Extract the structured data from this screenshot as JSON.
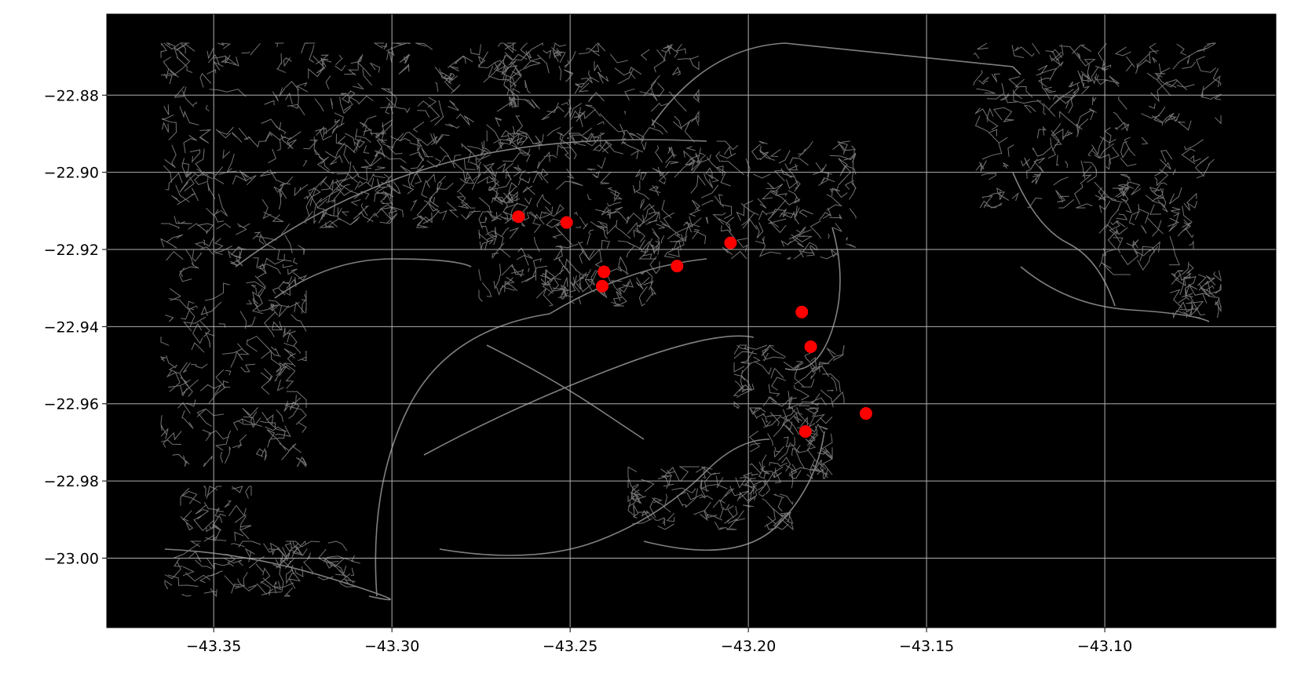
{
  "chart_data": {
    "type": "scatter",
    "title": "",
    "xlabel": "",
    "ylabel": "",
    "xlim": [
      -43.38,
      -43.052
    ],
    "ylim": [
      -23.018,
      -22.859
    ],
    "x_ticks": [
      -43.35,
      -43.3,
      -43.25,
      -43.2,
      -43.15,
      -43.1
    ],
    "x_tick_labels": [
      "−43.35",
      "−43.30",
      "−43.25",
      "−43.20",
      "−43.15",
      "−43.10"
    ],
    "y_ticks": [
      -22.88,
      -22.9,
      -22.92,
      -22.94,
      -22.96,
      -22.98,
      -23.0
    ],
    "y_tick_labels": [
      "−22.88",
      "−22.90",
      "−22.92",
      "−22.94",
      "−22.96",
      "−22.98",
      "−23.00"
    ],
    "grid": true,
    "background_color": "#000000",
    "road_color": "#808080",
    "grid_color": "#b0b0b0",
    "point_color": "#ff0000",
    "series": [
      {
        "values": [
          {
            "x": -43.2645,
            "y": -22.9115
          },
          {
            "x": -43.251,
            "y": -22.913
          },
          {
            "x": -43.2405,
            "y": -22.9258
          },
          {
            "x": -43.241,
            "y": -22.9295
          },
          {
            "x": -43.22,
            "y": -22.9243
          },
          {
            "x": -43.205,
            "y": -22.9183
          },
          {
            "x": -43.185,
            "y": -22.9362
          },
          {
            "x": -43.1825,
            "y": -22.9452
          },
          {
            "x": -43.184,
            "y": -22.9672
          },
          {
            "x": -43.167,
            "y": -22.9625
          }
        ]
      }
    ]
  }
}
